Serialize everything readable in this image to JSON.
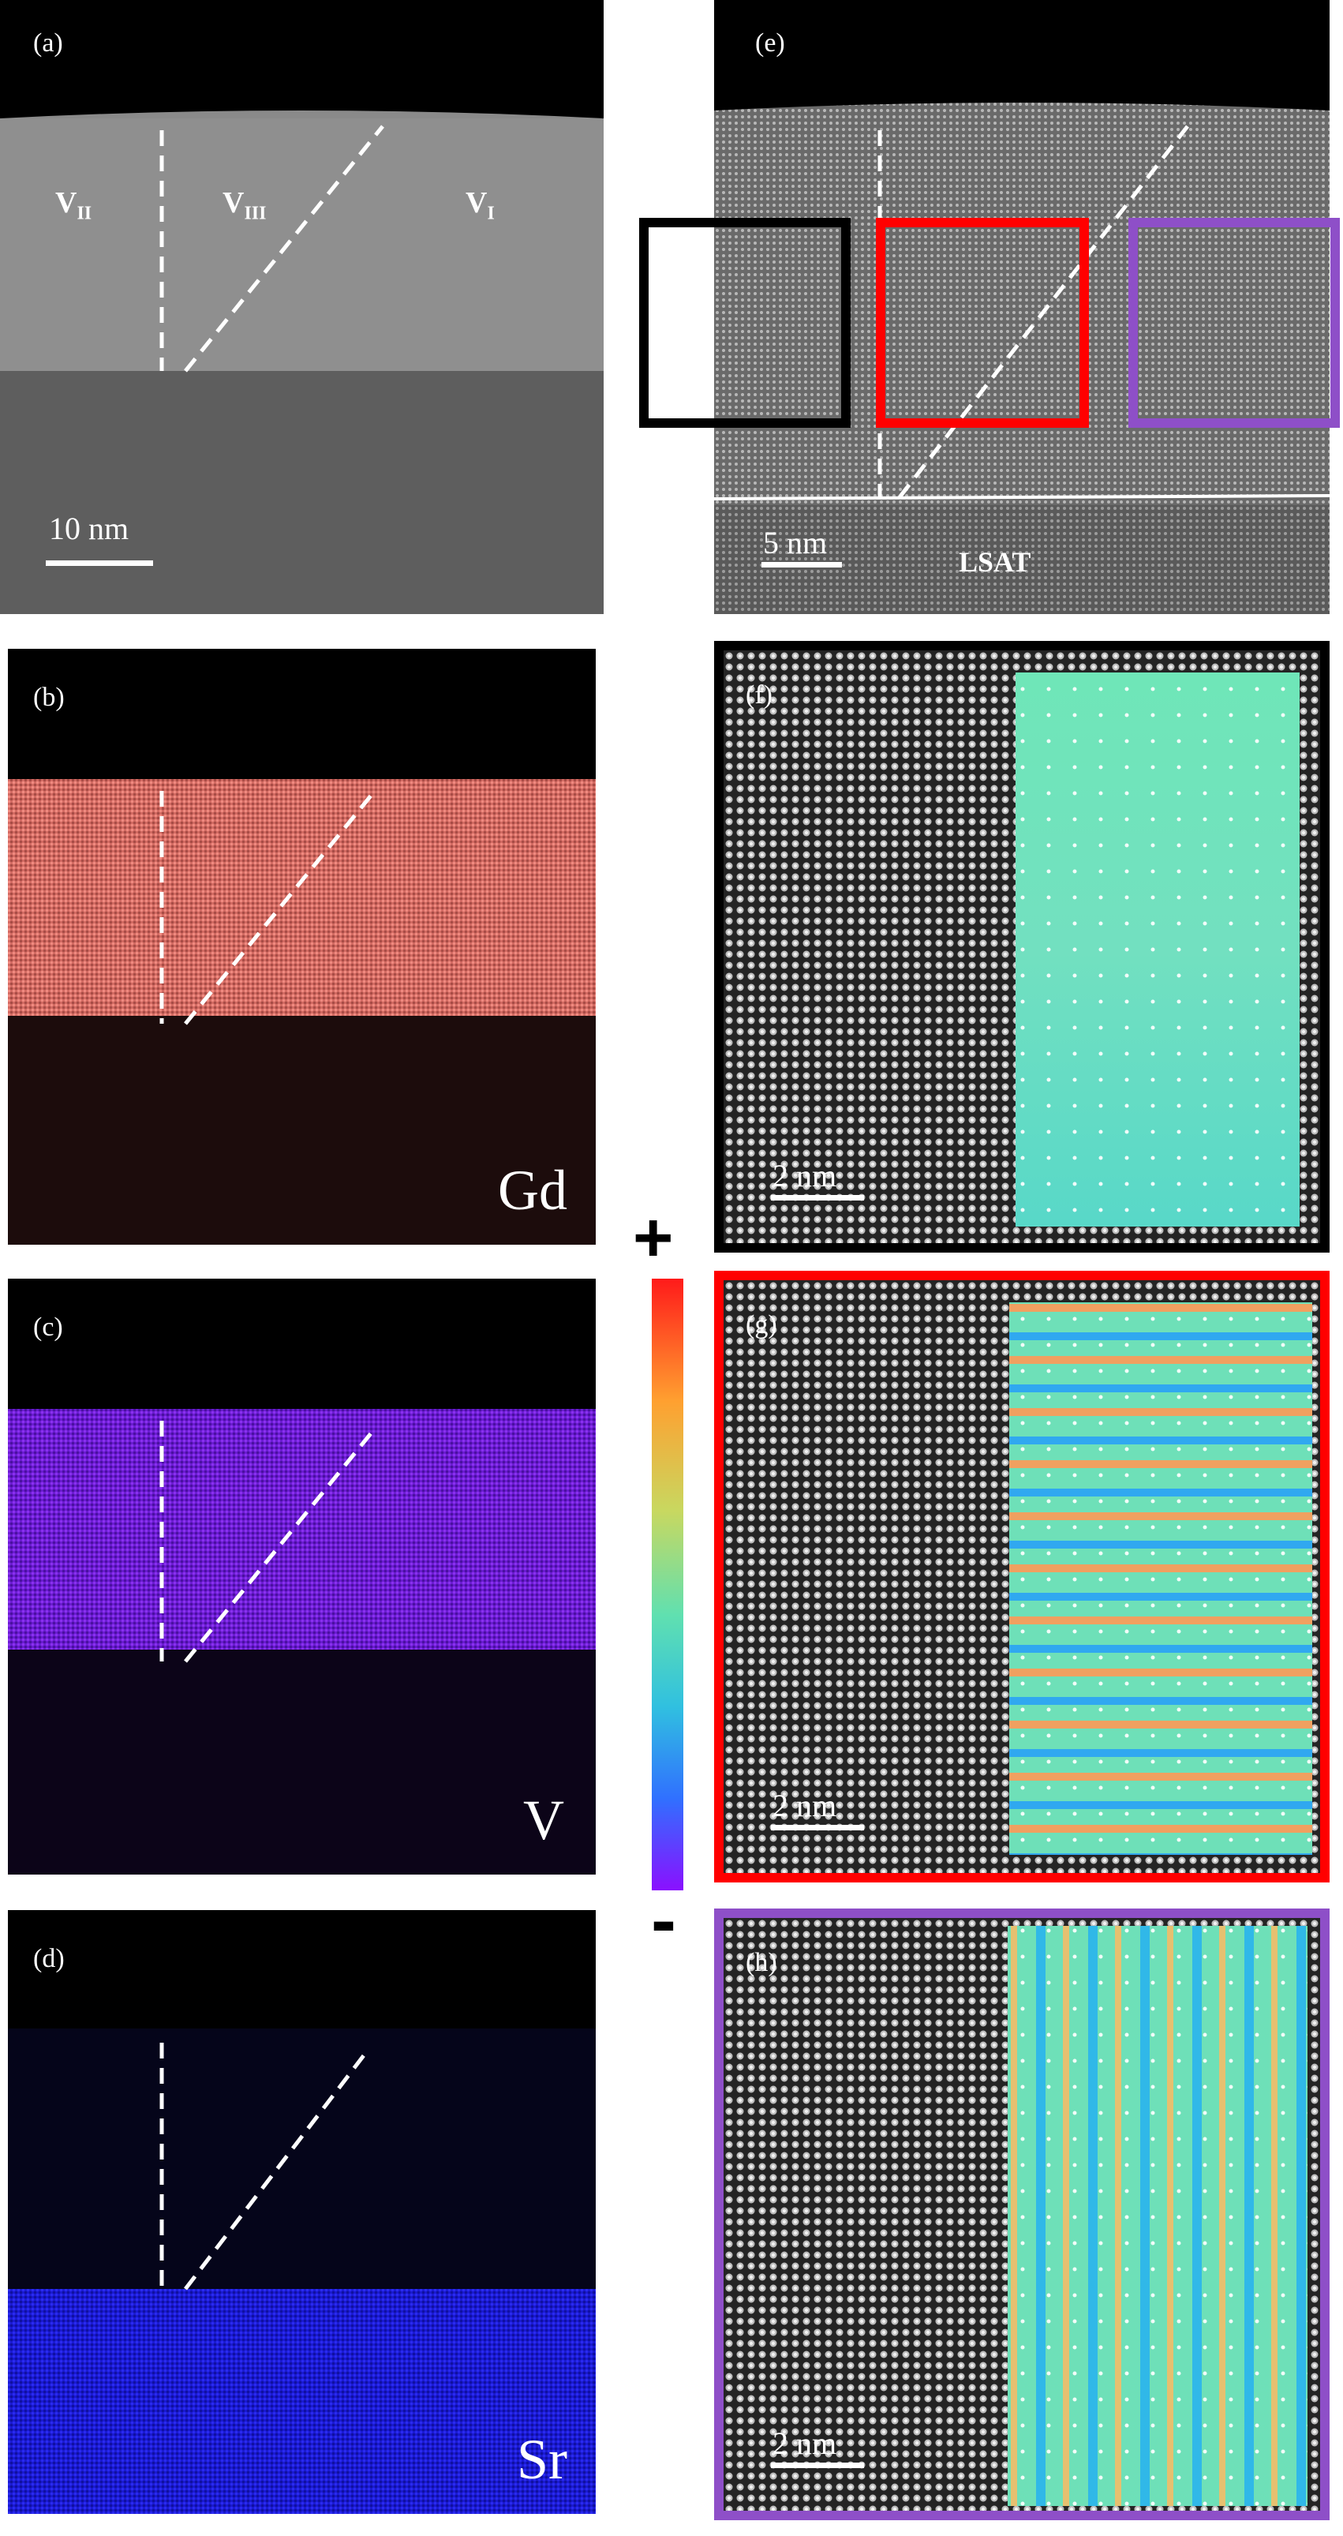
{
  "panels": {
    "a": {
      "label": "(a)",
      "scale": "10 nm",
      "regions": {
        "v2": {
          "main": "V",
          "sub": "II"
        },
        "v3": {
          "main": "V",
          "sub": "III"
        },
        "v1": {
          "main": "V",
          "sub": "I"
        }
      }
    },
    "b": {
      "label": "(b)",
      "element": "Gd",
      "color": "#e07068"
    },
    "c": {
      "label": "(c)",
      "element": "V",
      "color": "#7a1fe0"
    },
    "d": {
      "label": "(d)",
      "element": "Sr",
      "color": "#1a1ad8"
    },
    "e": {
      "label": "(e)",
      "scale": "5 nm",
      "substrate": "LSAT"
    },
    "f": {
      "label": "(f)",
      "scale": "2 nm",
      "frame_color": "#000000"
    },
    "g": {
      "label": "(g)",
      "scale": "2 nm",
      "frame_color": "#ff0000"
    },
    "h": {
      "label": "(h)",
      "scale": "2 nm",
      "frame_color": "#8e4fc8"
    }
  },
  "colorbar": {
    "top_sign": "+",
    "bottom_sign": "-",
    "colors": [
      "#ff1a1a",
      "#ffa030",
      "#c8d860",
      "#60e0b0",
      "#30c0e0",
      "#3070ff",
      "#8a10ff"
    ]
  }
}
